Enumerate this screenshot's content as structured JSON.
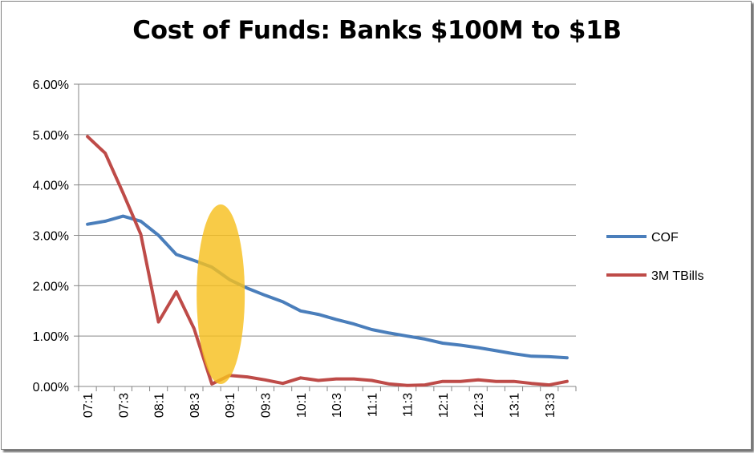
{
  "chart_data": {
    "type": "line",
    "title": "Cost of Funds: Banks $100M to $1B",
    "xlabel": "",
    "ylabel": "",
    "ylim": [
      0,
      0.06
    ],
    "y_ticks": [
      "0.00%",
      "1.00%",
      "2.00%",
      "3.00%",
      "4.00%",
      "5.00%",
      "6.00%"
    ],
    "x_ticks": [
      "07:1",
      "07:3",
      "08:1",
      "08:3",
      "09:1",
      "09:3",
      "10:1",
      "10:3",
      "11:1",
      "11:3",
      "12:1",
      "12:3",
      "13:1",
      "13:3"
    ],
    "x_count": 28,
    "series": [
      {
        "name": "COF",
        "color": "#4a7ebb",
        "values": [
          0.0322,
          0.0328,
          0.0338,
          0.0328,
          0.03,
          0.0262,
          0.025,
          0.0237,
          0.0212,
          0.0195,
          0.0181,
          0.0168,
          0.015,
          0.0143,
          0.0133,
          0.0124,
          0.0113,
          0.0106,
          0.01,
          0.0094,
          0.0086,
          0.0082,
          0.0077,
          0.0071,
          0.0065,
          0.006,
          0.0059,
          0.0057
        ]
      },
      {
        "name": "3M TBills",
        "color": "#be4b48",
        "values": [
          0.0496,
          0.0463,
          0.0384,
          0.0302,
          0.0128,
          0.0188,
          0.0115,
          0.0005,
          0.0022,
          0.0019,
          0.0013,
          0.0006,
          0.0017,
          0.0012,
          0.0015,
          0.0015,
          0.0012,
          0.0005,
          0.0002,
          0.0003,
          0.001,
          0.001,
          0.0013,
          0.001,
          0.001,
          0.0006,
          0.0003,
          0.001
        ]
      }
    ],
    "highlight": {
      "shape": "ellipse",
      "color": "#f7bf1f",
      "center_index": 7.5,
      "center_value": 0.0183
    },
    "legend_position": "right",
    "grid": true
  }
}
